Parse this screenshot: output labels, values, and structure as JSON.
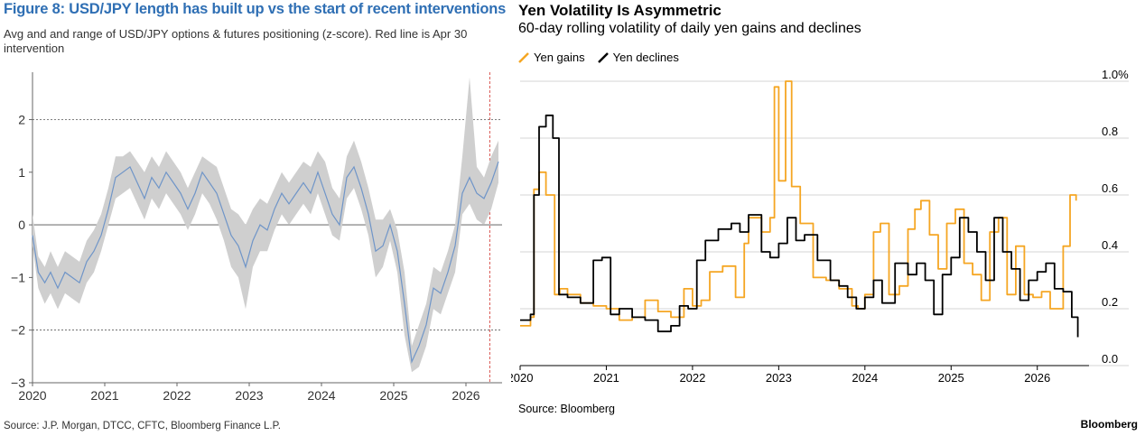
{
  "left": {
    "title": "Figure 8: USD/JPY length has built up vs the start of recent interventions",
    "subtitle": "Avg and and range of USD/JPY options & futures positioning (z-score). Red line is Apr 30 intervention",
    "source": "Source: J.P. Morgan, DTCC, CFTC, Bloomberg Finance L.P."
  },
  "right": {
    "title": "Yen Volatility Is Asymmetric",
    "subtitle": "60-day rolling volatility of daily yen gains and declines",
    "source": "Source: Bloomberg",
    "brand": "Bloomberg",
    "legend": [
      {
        "label": "Yen gains",
        "color": "#f5a623"
      },
      {
        "label": "Yen declines",
        "color": "#000000"
      }
    ]
  },
  "chart_data": [
    {
      "type": "area",
      "title": "Figure 8: USD/JPY length has built up vs the start of recent interventions",
      "subtitle": "Avg and and range of USD/JPY options & futures positioning (z-score). Red line is Apr 30 intervention",
      "ylim": [
        -3,
        2.9
      ],
      "xlim": [
        2020.0,
        2026.5
      ],
      "yticks": [
        -3,
        -2,
        -1,
        0,
        1,
        2
      ],
      "ytick_labels": [
        "−3",
        "−2",
        "−1",
        "0",
        "1",
        "2"
      ],
      "xticks": [
        2020,
        2021,
        2022,
        2023,
        2024,
        2025,
        2026
      ],
      "xtick_labels": [
        "2020",
        "2021",
        "2022",
        "2023",
        "2024",
        "2025",
        "2026"
      ],
      "reference_lines": [
        {
          "type": "horizontal",
          "y": 2,
          "style": "dotted"
        },
        {
          "type": "horizontal",
          "y": -2,
          "style": "dotted"
        },
        {
          "type": "horizontal",
          "y": 0,
          "style": "solid"
        },
        {
          "type": "vertical",
          "x": 2026.33,
          "style": "dashed",
          "color": "#d9534f"
        }
      ],
      "series": [
        {
          "x": [
            2020.0,
            2020.08,
            2020.17,
            2020.25,
            2020.35,
            2020.45,
            2020.55,
            2020.65,
            2020.75,
            2020.85,
            2020.95,
            2021.05,
            2021.15,
            2021.25,
            2021.35,
            2021.45,
            2021.55,
            2021.65,
            2021.75,
            2021.85,
            2021.95,
            2022.05,
            2022.15,
            2022.25,
            2022.35,
            2022.45,
            2022.55,
            2022.65,
            2022.75,
            2022.85,
            2022.95,
            2023.05,
            2023.15,
            2023.25,
            2023.35,
            2023.45,
            2023.55,
            2023.65,
            2023.75,
            2023.85,
            2023.95,
            2024.05,
            2024.15,
            2024.25,
            2024.35,
            2024.45,
            2024.55,
            2024.65,
            2024.75,
            2024.85,
            2024.95,
            2025.05,
            2025.15,
            2025.25,
            2025.35,
            2025.45,
            2025.55,
            2025.65,
            2025.75,
            2025.85,
            2025.95,
            2026.05,
            2026.15,
            2026.25,
            2026.35,
            2026.45
          ],
          "mean": [
            -0.2,
            -0.9,
            -1.1,
            -0.9,
            -1.2,
            -0.9,
            -1.0,
            -1.1,
            -0.7,
            -0.5,
            -0.2,
            0.3,
            0.9,
            1.0,
            1.1,
            0.8,
            0.5,
            0.9,
            0.7,
            1.0,
            0.8,
            0.6,
            0.3,
            0.6,
            1.0,
            0.8,
            0.6,
            0.2,
            -0.2,
            -0.4,
            -0.8,
            -0.3,
            0.0,
            -0.1,
            0.3,
            0.6,
            0.4,
            0.6,
            0.8,
            0.6,
            1.0,
            0.6,
            0.2,
            0.0,
            0.9,
            1.1,
            0.7,
            0.2,
            -0.5,
            -0.4,
            0.0,
            -0.5,
            -1.5,
            -2.6,
            -2.3,
            -1.9,
            -1.2,
            -1.3,
            -0.9,
            -0.4,
            0.6,
            0.9,
            0.6,
            0.5,
            0.8,
            1.2
          ],
          "low": [
            -0.4,
            -1.2,
            -1.5,
            -1.3,
            -1.6,
            -1.3,
            -1.4,
            -1.5,
            -1.1,
            -0.9,
            -0.5,
            0.0,
            0.5,
            0.6,
            0.7,
            0.4,
            0.1,
            0.5,
            0.3,
            0.6,
            0.4,
            0.2,
            -0.1,
            0.2,
            0.6,
            0.4,
            0.1,
            -0.3,
            -0.8,
            -1.0,
            -1.6,
            -0.8,
            -0.5,
            -0.5,
            -0.1,
            0.2,
            0.0,
            0.2,
            0.4,
            0.2,
            0.6,
            0.2,
            -0.2,
            -0.3,
            0.5,
            0.7,
            0.3,
            -0.2,
            -1.0,
            -0.8,
            -0.3,
            -0.9,
            -2.1,
            -2.8,
            -2.7,
            -2.3,
            -1.6,
            -1.7,
            -1.3,
            -0.9,
            0.2,
            0.4,
            0.1,
            0.0,
            0.3,
            0.8
          ],
          "high": [
            0.2,
            -0.6,
            -0.8,
            -0.5,
            -0.8,
            -0.5,
            -0.6,
            -0.7,
            -0.3,
            -0.1,
            0.2,
            0.7,
            1.3,
            1.3,
            1.4,
            1.2,
            1.0,
            1.3,
            1.1,
            1.4,
            1.2,
            1.0,
            0.7,
            1.0,
            1.3,
            1.2,
            1.1,
            0.7,
            0.3,
            0.2,
            0.0,
            0.3,
            0.5,
            0.4,
            0.7,
            1.0,
            0.8,
            1.0,
            1.2,
            1.1,
            1.4,
            1.2,
            0.7,
            0.5,
            1.3,
            1.6,
            1.2,
            0.7,
            0.1,
            0.1,
            0.3,
            -0.1,
            -0.9,
            -2.3,
            -1.9,
            -1.5,
            -0.8,
            -0.9,
            -0.5,
            0.0,
            1.3,
            2.8,
            1.1,
            0.9,
            1.3,
            1.6
          ]
        }
      ]
    },
    {
      "type": "line",
      "title": "Yen Volatility Is Asymmetric",
      "subtitle": "60-day rolling volatility of daily yen gains and declines",
      "ylim": [
        0.0,
        1.0
      ],
      "xlim": [
        2020.0,
        2026.6
      ],
      "yticks": [
        0.0,
        0.2,
        0.4,
        0.6,
        0.8,
        1.0
      ],
      "ytick_labels": [
        "0.0",
        "0.2",
        "0.4",
        "0.6",
        "0.8",
        "1.0%"
      ],
      "xticks": [
        2020,
        2021,
        2022,
        2023,
        2024,
        2025,
        2026
      ],
      "xtick_labels": [
        "2020",
        "2021",
        "2022",
        "2023",
        "2024",
        "2025",
        "2026"
      ],
      "legend": "top-left",
      "series": [
        {
          "name": "Yen gains",
          "color": "#f5a623",
          "x": [
            2020.0,
            2020.12,
            2020.16,
            2020.22,
            2020.3,
            2020.4,
            2020.46,
            2020.55,
            2020.7,
            2020.85,
            2021.0,
            2021.15,
            2021.3,
            2021.45,
            2021.6,
            2021.75,
            2021.9,
            2022.0,
            2022.1,
            2022.2,
            2022.35,
            2022.5,
            2022.6,
            2022.65,
            2022.8,
            2022.9,
            2022.95,
            2023.0,
            2023.08,
            2023.15,
            2023.25,
            2023.4,
            2023.55,
            2023.7,
            2023.85,
            2023.92,
            2024.0,
            2024.1,
            2024.18,
            2024.28,
            2024.4,
            2024.5,
            2024.58,
            2024.65,
            2024.75,
            2024.85,
            2024.95,
            2025.05,
            2025.15,
            2025.25,
            2025.35,
            2025.45,
            2025.55,
            2025.65,
            2025.75,
            2025.85,
            2025.95,
            2026.05,
            2026.15,
            2026.2,
            2026.3,
            2026.38,
            2026.45
          ],
          "values": [
            0.14,
            0.17,
            0.62,
            0.68,
            0.6,
            0.25,
            0.27,
            0.25,
            0.22,
            0.21,
            0.2,
            0.16,
            0.17,
            0.23,
            0.19,
            0.17,
            0.27,
            0.21,
            0.23,
            0.33,
            0.35,
            0.24,
            0.43,
            0.52,
            0.47,
            0.52,
            0.98,
            0.65,
            1.0,
            0.63,
            0.5,
            0.31,
            0.3,
            0.27,
            0.21,
            0.2,
            0.25,
            0.47,
            0.5,
            0.25,
            0.28,
            0.48,
            0.55,
            0.58,
            0.46,
            0.34,
            0.5,
            0.55,
            0.36,
            0.32,
            0.23,
            0.47,
            0.52,
            0.25,
            0.42,
            0.25,
            0.24,
            0.26,
            0.2,
            0.2,
            0.42,
            0.6,
            0.58
          ]
        },
        {
          "name": "Yen declines",
          "color": "#000000",
          "x": [
            2020.0,
            2020.12,
            2020.16,
            2020.22,
            2020.3,
            2020.38,
            2020.45,
            2020.55,
            2020.7,
            2020.85,
            2020.95,
            2021.05,
            2021.15,
            2021.3,
            2021.45,
            2021.6,
            2021.75,
            2021.85,
            2021.95,
            2022.05,
            2022.15,
            2022.3,
            2022.45,
            2022.55,
            2022.65,
            2022.8,
            2022.9,
            2023.0,
            2023.1,
            2023.2,
            2023.3,
            2023.45,
            2023.6,
            2023.7,
            2023.8,
            2023.9,
            2024.0,
            2024.1,
            2024.2,
            2024.35,
            2024.5,
            2024.6,
            2024.7,
            2024.8,
            2024.9,
            2025.0,
            2025.1,
            2025.2,
            2025.3,
            2025.4,
            2025.5,
            2025.6,
            2025.7,
            2025.8,
            2025.9,
            2026.0,
            2026.1,
            2026.2,
            2026.3,
            2026.4,
            2026.47
          ],
          "values": [
            0.16,
            0.18,
            0.6,
            0.84,
            0.88,
            0.8,
            0.25,
            0.24,
            0.22,
            0.37,
            0.38,
            0.18,
            0.2,
            0.17,
            0.16,
            0.12,
            0.14,
            0.21,
            0.2,
            0.37,
            0.44,
            0.48,
            0.5,
            0.47,
            0.53,
            0.4,
            0.38,
            0.43,
            0.52,
            0.44,
            0.46,
            0.37,
            0.3,
            0.28,
            0.24,
            0.2,
            0.24,
            0.3,
            0.22,
            0.36,
            0.32,
            0.36,
            0.3,
            0.18,
            0.32,
            0.38,
            0.52,
            0.47,
            0.4,
            0.3,
            0.52,
            0.4,
            0.34,
            0.23,
            0.3,
            0.33,
            0.36,
            0.27,
            0.26,
            0.17,
            0.1
          ]
        }
      ]
    }
  ]
}
